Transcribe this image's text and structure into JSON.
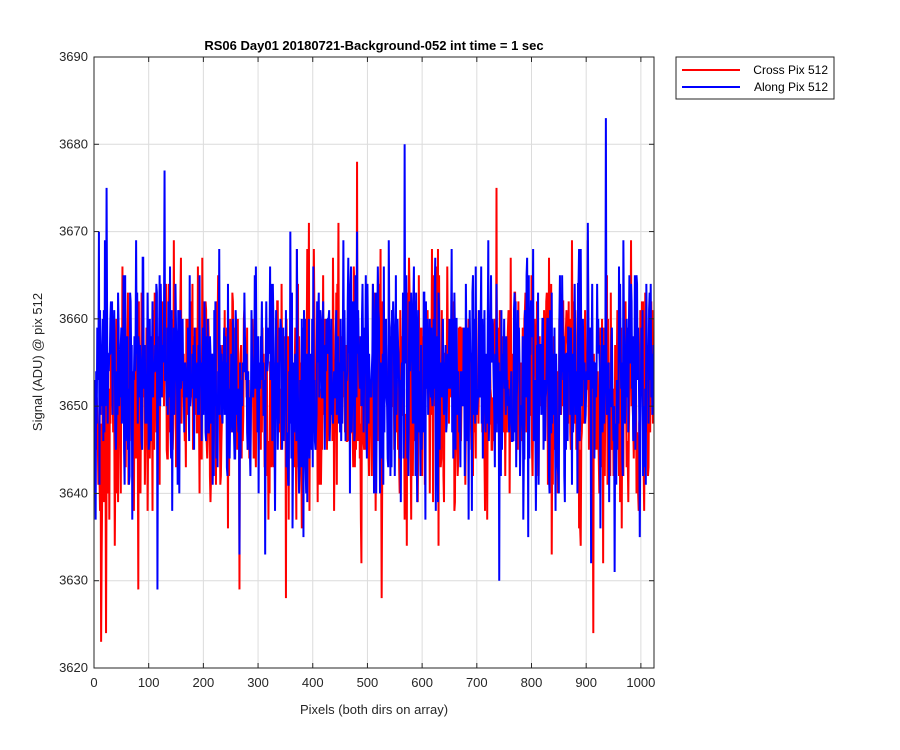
{
  "chart_data": {
    "type": "line",
    "title": "RS06 Day01 20180721-Background-052 int time = 1 sec",
    "xlabel": "Pixels (both dirs on array)",
    "ylabel": "Signal (ADU) @ pix 512",
    "xlim": [
      0,
      1024
    ],
    "ylim": [
      3620,
      3690
    ],
    "xticks": [
      0,
      100,
      200,
      300,
      400,
      500,
      600,
      700,
      800,
      900,
      1000
    ],
    "yticks": [
      3620,
      3630,
      3640,
      3650,
      3660,
      3670,
      3680,
      3690
    ],
    "grid": true,
    "legend_position": "outside-top-right",
    "series": [
      {
        "name": "Cross Pix 512",
        "color": "#ff0000",
        "mean": 3652,
        "noise_sd": 7,
        "n_points": 1024,
        "extremes": [
          {
            "x": 12,
            "y": 3623
          },
          {
            "x": 480,
            "y": 3678
          },
          {
            "x": 912,
            "y": 3624
          },
          {
            "x": 265,
            "y": 3629
          },
          {
            "x": 80,
            "y": 3629
          }
        ]
      },
      {
        "name": "Along Pix 512",
        "color": "#0000ff",
        "mean": 3653,
        "noise_sd": 7,
        "n_points": 1024,
        "extremes": [
          {
            "x": 935,
            "y": 3683
          },
          {
            "x": 567,
            "y": 3680
          },
          {
            "x": 115,
            "y": 3629
          },
          {
            "x": 740,
            "y": 3630
          },
          {
            "x": 128,
            "y": 3677
          }
        ]
      }
    ]
  }
}
